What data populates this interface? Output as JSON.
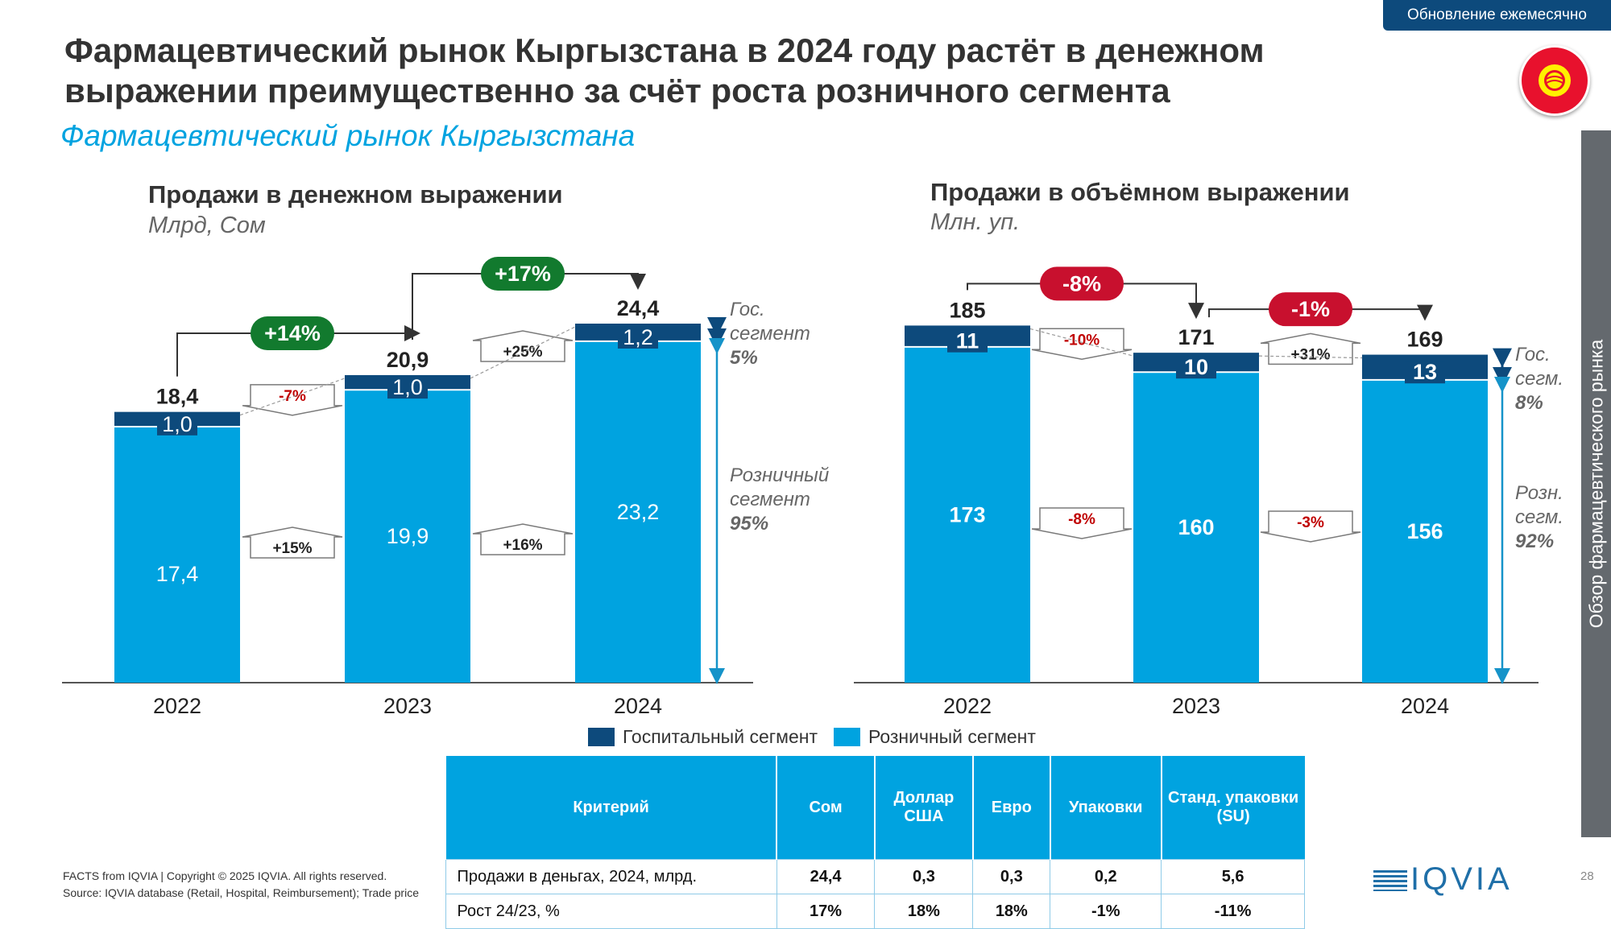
{
  "badge": "Обновление ежемесячно",
  "title": "Фармацевтический рынок Кыргызстана в 2024 году растёт в денежном выражении преимущественно за счёт роста розничного сегмента",
  "subtitle": "Фармацевтический рынок Кыргызстана",
  "sidebar": "Обзор фармацевтического рынка",
  "colors": {
    "hospital": "#0d4a7c",
    "retail": "#00a3e0",
    "growth_green": "#127a2e",
    "decline_red": "#c8102e",
    "small_red": "#c00000"
  },
  "chart_data": [
    {
      "type": "bar",
      "stacked": true,
      "title": "Продажи в денежном выражении",
      "unit": "Млрд, Сом",
      "categories": [
        "2022",
        "2023",
        "2024"
      ],
      "series": [
        {
          "name": "Розничный сегмент",
          "values": [
            17.4,
            19.9,
            23.2
          ],
          "labels": [
            "17,4",
            "19,9",
            "23,2"
          ]
        },
        {
          "name": "Госпитальный сегмент",
          "values": [
            1.0,
            1.0,
            1.2
          ],
          "labels": [
            "1,0",
            "1,0",
            "1,2"
          ]
        }
      ],
      "totals": [
        "18,4",
        "20,9",
        "24,4"
      ],
      "total_growth": [
        "+14%",
        "+17%"
      ],
      "hospital_growth": [
        "-7%",
        "+25%"
      ],
      "retail_growth": [
        "+15%",
        "+16%"
      ],
      "segment_notes": {
        "hospital_label": "Гос. сегмент",
        "hospital_share": "5%",
        "retail_label": "Розничный сегмент",
        "retail_share": "95%"
      },
      "ylim": [
        0,
        24.4
      ]
    },
    {
      "type": "bar",
      "stacked": true,
      "title": "Продажи в объёмном выражении",
      "unit": "Млн. уп.",
      "categories": [
        "2022",
        "2023",
        "2024"
      ],
      "series": [
        {
          "name": "Розничный сегмент",
          "values": [
            173,
            160,
            156
          ],
          "labels": [
            "173",
            "160",
            "156"
          ]
        },
        {
          "name": "Госпитальный сегмент",
          "values": [
            11,
            10,
            13
          ],
          "labels": [
            "11",
            "10",
            "13"
          ]
        }
      ],
      "totals": [
        "185",
        "171",
        "169"
      ],
      "total_growth": [
        "-8%",
        "-1%"
      ],
      "hospital_growth": [
        "-10%",
        "+31%"
      ],
      "retail_growth": [
        "-8%",
        "-3%"
      ],
      "segment_notes": {
        "hospital_label": "Гос. сегм.",
        "hospital_share": "8%",
        "retail_label": "Розн. сегм.",
        "retail_share": "92%"
      },
      "ylim": [
        0,
        185
      ]
    }
  ],
  "legend": {
    "hospital": "Госпитальный сегмент",
    "retail": "Розничный сегмент"
  },
  "table": {
    "headers": [
      "Критерий",
      "Сом",
      "Доллар США",
      "Евро",
      "Упаковки",
      "Станд. упаковки (SU)"
    ],
    "rows": [
      [
        "Продажи в деньгах, 2024, млрд.",
        "24,4",
        "0,3",
        "0,3",
        "0,2",
        "5,6"
      ],
      [
        "Рост 24/23, %",
        "17%",
        "18%",
        "18%",
        "-1%",
        "-11%"
      ]
    ]
  },
  "footer": {
    "line1": "FACTS from IQVIA | Copyright © 2025 IQVIA. All rights reserved.",
    "line2": "Source: IQVIA database (Retail, Hospital, Reimbursement); Trade price"
  },
  "logo": "IQVIA",
  "page_number": "28"
}
